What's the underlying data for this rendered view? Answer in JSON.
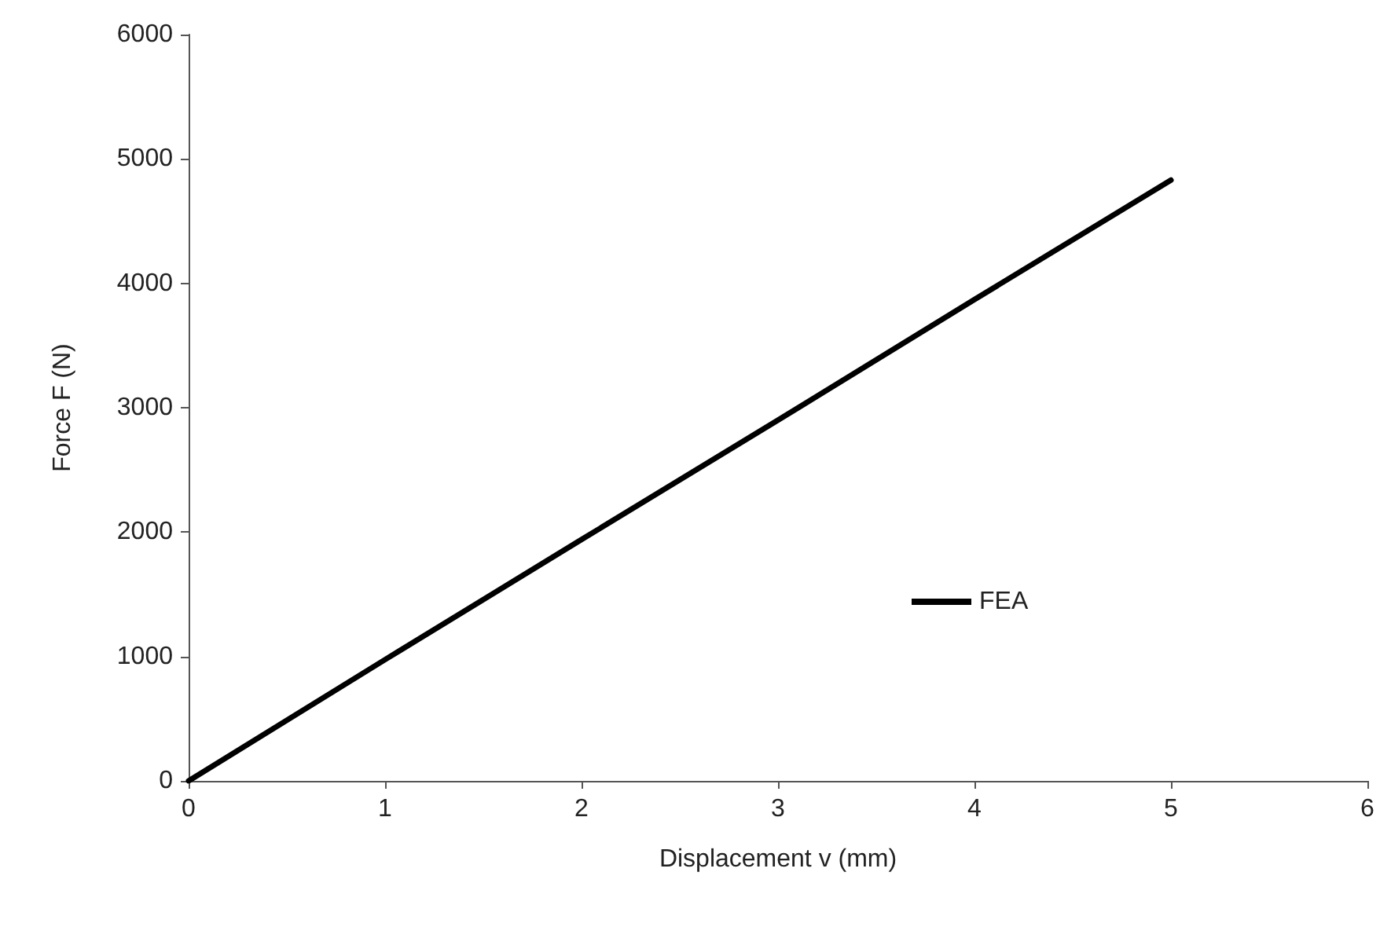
{
  "chart_data": {
    "type": "line",
    "xlabel": "Displacement v (mm)",
    "ylabel": "Force F (N)",
    "x": [
      0,
      1,
      2,
      3,
      4,
      5
    ],
    "series": [
      {
        "name": "FEA",
        "color": "#000000",
        "values": [
          0,
          975,
          1940,
          2900,
          3870,
          4830
        ]
      }
    ],
    "xlim": [
      0,
      6
    ],
    "xticks": [
      0,
      1,
      2,
      3,
      4,
      5,
      6
    ],
    "ylim": [
      0,
      6000
    ],
    "yticks": [
      0,
      1000,
      2000,
      3000,
      4000,
      5000,
      6000
    ],
    "grid": false,
    "legend": "right",
    "marker": "none",
    "line_style": "solid"
  }
}
